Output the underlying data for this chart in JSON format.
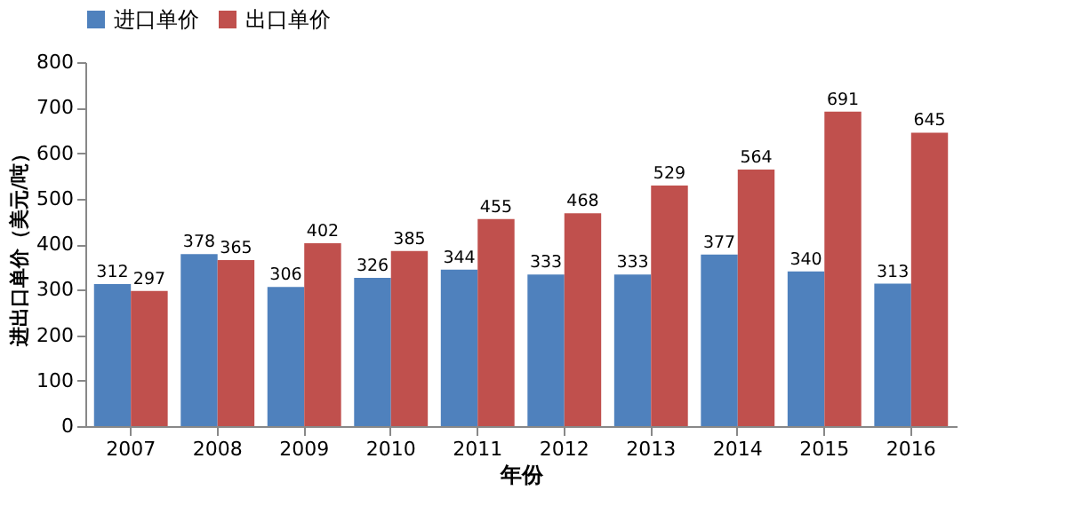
{
  "chart_data": {
    "type": "bar",
    "xlabel": "年份",
    "ylabel": "进出口单价（美元/吨）",
    "categories": [
      "2007",
      "2008",
      "2009",
      "2010",
      "2011",
      "2012",
      "2013",
      "2014",
      "2015",
      "2016"
    ],
    "series": [
      {
        "name": "进口单价",
        "color": "#4f81bd",
        "values": [
          312,
          378,
          306,
          326,
          344,
          333,
          333,
          377,
          340,
          313
        ]
      },
      {
        "name": "出口单价",
        "color": "#c0504d",
        "values": [
          297,
          365,
          402,
          385,
          455,
          468,
          529,
          564,
          691,
          645
        ]
      }
    ],
    "ylim": [
      0,
      800
    ],
    "yticks": [
      0,
      100,
      200,
      300,
      400,
      500,
      600,
      700,
      800
    ],
    "grid": false,
    "legend": "top",
    "data_labels": true
  }
}
